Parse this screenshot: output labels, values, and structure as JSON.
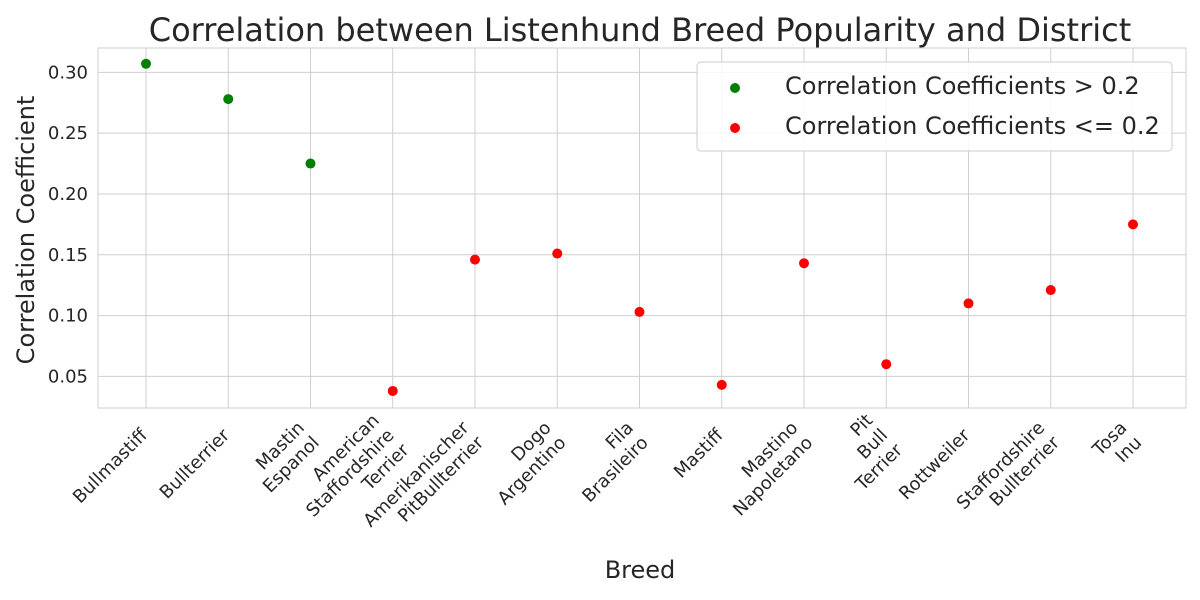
{
  "chart_data": {
    "type": "scatter",
    "title": "Correlation between Listenhund Breed Popularity and District",
    "xlabel": "Breed",
    "ylabel": "Correlation Coefficient",
    "categories": [
      "Bullmastiff",
      "Bullterrier",
      "Mastin\nEspanol",
      "American\nStaffordshire\nTerrier",
      "Amerikanischer\nPitBullterrier",
      "Dogo\nArgentino",
      "Fila\nBrasileiro",
      "Mastiff",
      "Mastino\nNapoletano",
      "Pit\nBull\nTerrier",
      "Rottweiler",
      "Staffordshire\nBullterrier",
      "Tosa\nInu"
    ],
    "values": [
      0.307,
      0.278,
      0.225,
      0.038,
      0.146,
      0.151,
      0.103,
      0.043,
      0.143,
      0.06,
      0.11,
      0.121,
      0.175
    ],
    "threshold": 0.2,
    "ylim": [
      0.024,
      0.32
    ],
    "yticks": [
      0.05,
      0.1,
      0.15,
      0.2,
      0.25,
      0.3
    ],
    "yticks_labels": [
      "0.05",
      "0.10",
      "0.15",
      "0.20",
      "0.25",
      "0.30"
    ],
    "grid": true,
    "series": [
      {
        "name": "Correlation Coefficients > 0.2",
        "color": "#008000"
      },
      {
        "name": "Correlation Coefficients <= 0.2",
        "color": "#ff0000"
      }
    ],
    "legend_position": "top-right"
  }
}
